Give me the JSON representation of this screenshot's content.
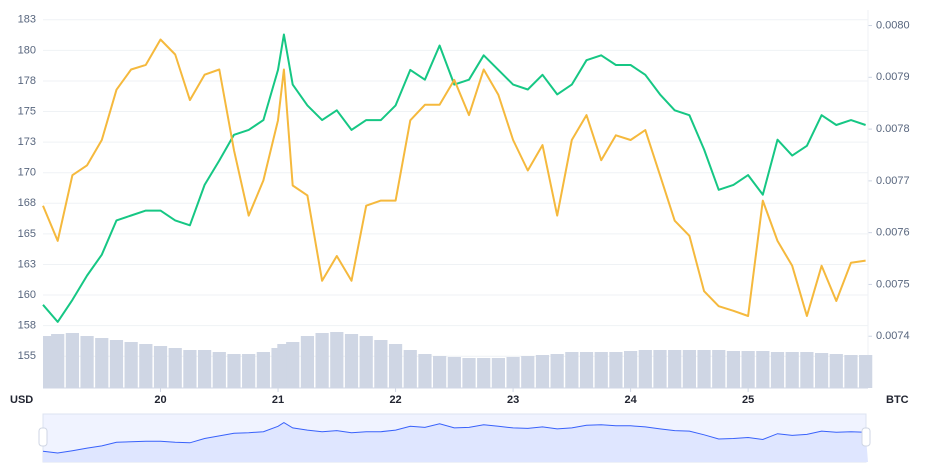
{
  "chart_data": {
    "type": "line",
    "ylabel": "USD",
    "y2label": "BTC",
    "x": [
      19.0,
      19.125,
      19.25,
      19.375,
      19.5,
      19.625,
      19.75,
      19.875,
      20.0,
      20.125,
      20.25,
      20.375,
      20.5,
      20.625,
      20.75,
      20.875,
      21.0,
      21.05,
      21.125,
      21.25,
      21.375,
      21.5,
      21.625,
      21.75,
      21.875,
      22.0,
      22.125,
      22.25,
      22.375,
      22.5,
      22.625,
      22.75,
      22.875,
      23.0,
      23.125,
      23.25,
      23.375,
      23.5,
      23.625,
      23.75,
      23.875,
      24.0,
      24.125,
      24.25,
      24.375,
      24.5,
      24.625,
      24.75,
      24.875,
      25.0,
      25.125,
      25.25,
      25.375,
      25.5,
      25.625,
      25.75,
      25.875,
      26.0
    ],
    "series": [
      {
        "color": "#16c784",
        "axis": "y",
        "values": [
          159.2,
          157.8,
          159.6,
          161.6,
          163.3,
          166.1,
          166.5,
          166.9,
          166.9,
          166.1,
          165.7,
          169.0,
          171.0,
          173.1,
          173.5,
          174.3,
          178.4,
          181.3,
          177.2,
          175.5,
          174.3,
          175.1,
          173.5,
          174.3,
          174.3,
          175.5,
          178.4,
          177.6,
          180.4,
          177.2,
          177.6,
          179.6,
          178.4,
          177.2,
          176.8,
          178.0,
          176.4,
          177.2,
          179.2,
          179.6,
          178.8,
          178.8,
          178.0,
          176.4,
          175.1,
          174.7,
          171.9,
          168.6,
          169.0,
          169.8,
          168.2,
          172.7,
          171.4,
          172.2,
          174.7,
          173.9,
          174.3,
          173.9
        ]
      },
      {
        "color": "#f5b93d",
        "axis": "y2",
        "values": [
          0.007652,
          0.007584,
          0.007711,
          0.00773,
          0.007779,
          0.007876,
          0.007915,
          0.007924,
          0.007973,
          0.007944,
          0.007856,
          0.007905,
          0.007915,
          0.007759,
          0.007633,
          0.007701,
          0.007817,
          0.007915,
          0.007691,
          0.007672,
          0.007507,
          0.007555,
          0.007507,
          0.007652,
          0.007662,
          0.007662,
          0.007817,
          0.007847,
          0.007847,
          0.007895,
          0.007827,
          0.007915,
          0.007866,
          0.007779,
          0.00772,
          0.007769,
          0.007633,
          0.007779,
          0.007827,
          0.00774,
          0.007788,
          0.007779,
          0.007798,
          0.007711,
          0.007623,
          0.007594,
          0.007487,
          0.007458,
          0.007449,
          0.007439,
          0.007662,
          0.007584,
          0.007536,
          0.007439,
          0.007536,
          0.007468,
          0.007542,
          0.007546
        ]
      }
    ],
    "volume": {
      "color": "#cfd6e4",
      "values": [
        52,
        54,
        55,
        52,
        50,
        48,
        46,
        44,
        42,
        40,
        38,
        38,
        36,
        34,
        34,
        36,
        40,
        44,
        46,
        52,
        55,
        56,
        54,
        52,
        48,
        44,
        38,
        34,
        32,
        31,
        30,
        30,
        30,
        31,
        32,
        33,
        34,
        36,
        36,
        36,
        36,
        37,
        38,
        38,
        38,
        38,
        38,
        38,
        37,
        37,
        37,
        36,
        36,
        36,
        35,
        34,
        33,
        33
      ]
    },
    "xlim": [
      19,
      26.02
    ],
    "xticks": [
      20,
      21,
      22,
      23,
      24,
      25
    ],
    "ylim": [
      152.4,
      183.3
    ],
    "yticks": [
      155,
      {
        "value": 157.5,
        "label": "158"
      },
      160,
      {
        "value": 162.5,
        "label": "163"
      },
      165,
      {
        "value": 167.5,
        "label": "168"
      },
      170,
      {
        "value": 172.5,
        "label": "173"
      },
      175,
      {
        "value": 177.5,
        "label": "178"
      },
      180,
      {
        "value": 182.5,
        "label": "183"
      }
    ],
    "y2lim": [
      0.0073,
      0.00803
    ],
    "y2ticks": [
      0.0074,
      0.0075,
      0.0076,
      0.0077,
      0.0078,
      0.0079,
      {
        "value": 0.008,
        "label": "0.0080"
      }
    ],
    "grid": true
  }
}
